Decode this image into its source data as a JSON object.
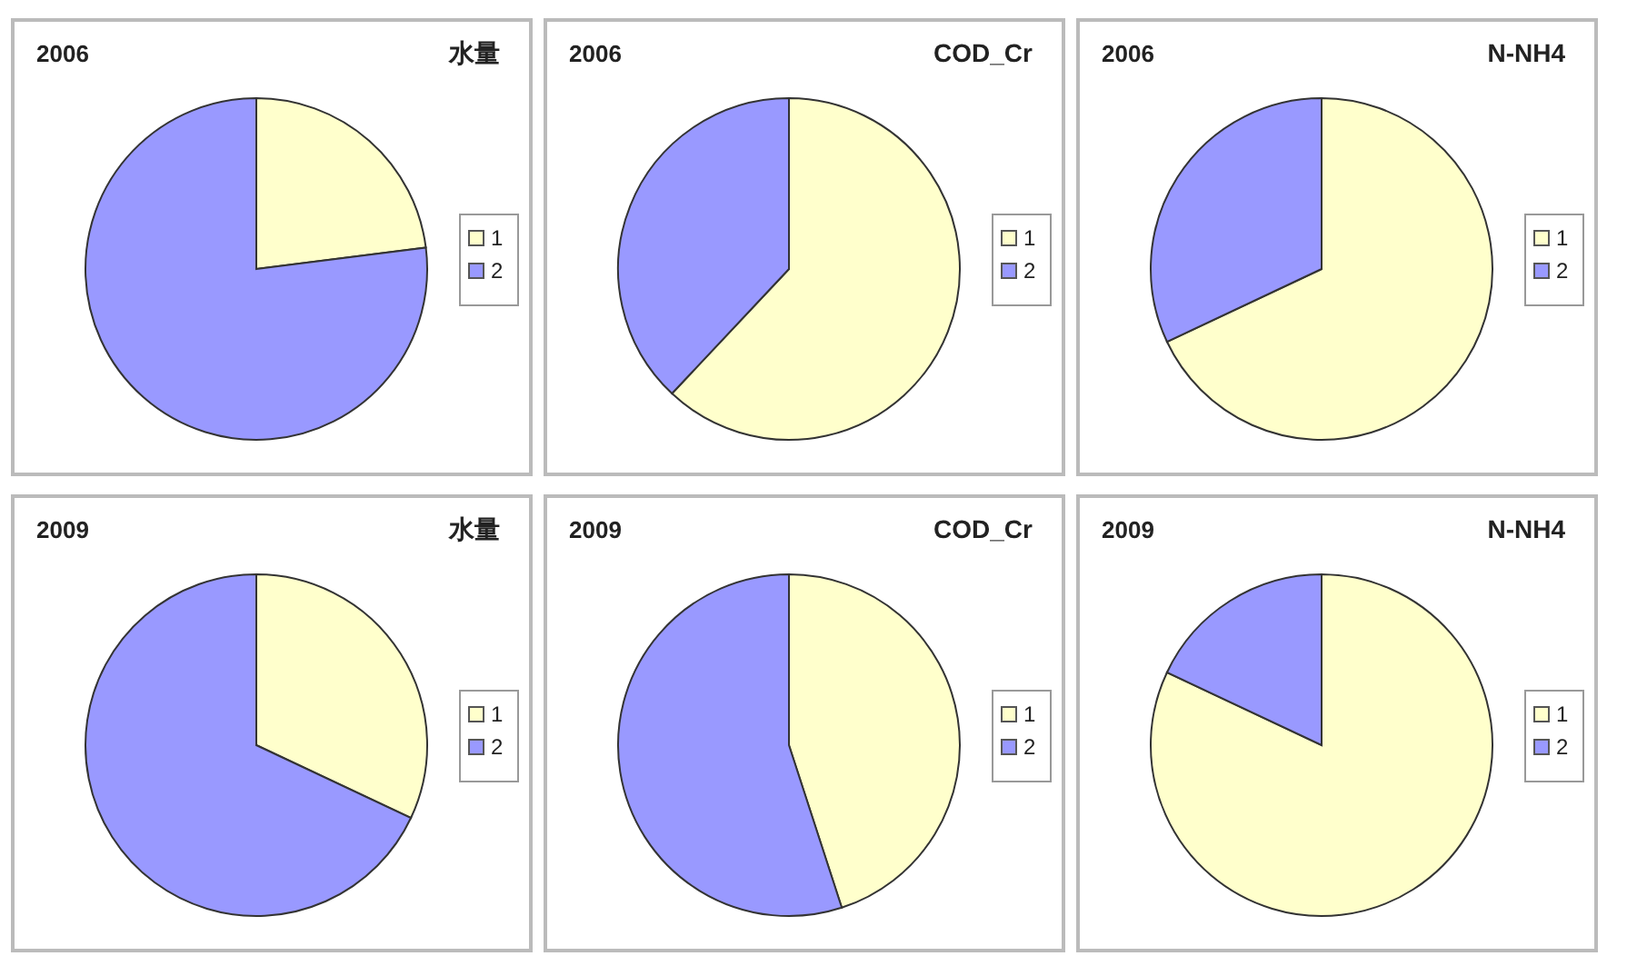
{
  "chart_data": [
    {
      "type": "pie",
      "title": "2006",
      "subtitle": "水量",
      "categories": [
        "1",
        "2"
      ],
      "values": [
        23,
        77
      ],
      "colors": [
        "#ffffcc",
        "#9999ff"
      ],
      "legend": "right"
    },
    {
      "type": "pie",
      "title": "2006",
      "subtitle": "COD_Cr",
      "categories": [
        "1",
        "2"
      ],
      "values": [
        62,
        38
      ],
      "colors": [
        "#ffffcc",
        "#9999ff"
      ],
      "legend": "right"
    },
    {
      "type": "pie",
      "title": "2006",
      "subtitle": "N-NH4",
      "categories": [
        "1",
        "2"
      ],
      "values": [
        68,
        32
      ],
      "colors": [
        "#ffffcc",
        "#9999ff"
      ],
      "legend": "right"
    },
    {
      "type": "pie",
      "title": "2009",
      "subtitle": "水量",
      "categories": [
        "1",
        "2"
      ],
      "values": [
        32,
        68
      ],
      "colors": [
        "#ffffcc",
        "#9999ff"
      ],
      "legend": "right"
    },
    {
      "type": "pie",
      "title": "2009",
      "subtitle": "COD_Cr",
      "categories": [
        "1",
        "2"
      ],
      "values": [
        45,
        55
      ],
      "colors": [
        "#ffffcc",
        "#9999ff"
      ],
      "legend": "right"
    },
    {
      "type": "pie",
      "title": "2009",
      "subtitle": "N-NH4",
      "categories": [
        "1",
        "2"
      ],
      "values": [
        82,
        18
      ],
      "colors": [
        "#ffffcc",
        "#9999ff"
      ],
      "legend": "right"
    }
  ]
}
